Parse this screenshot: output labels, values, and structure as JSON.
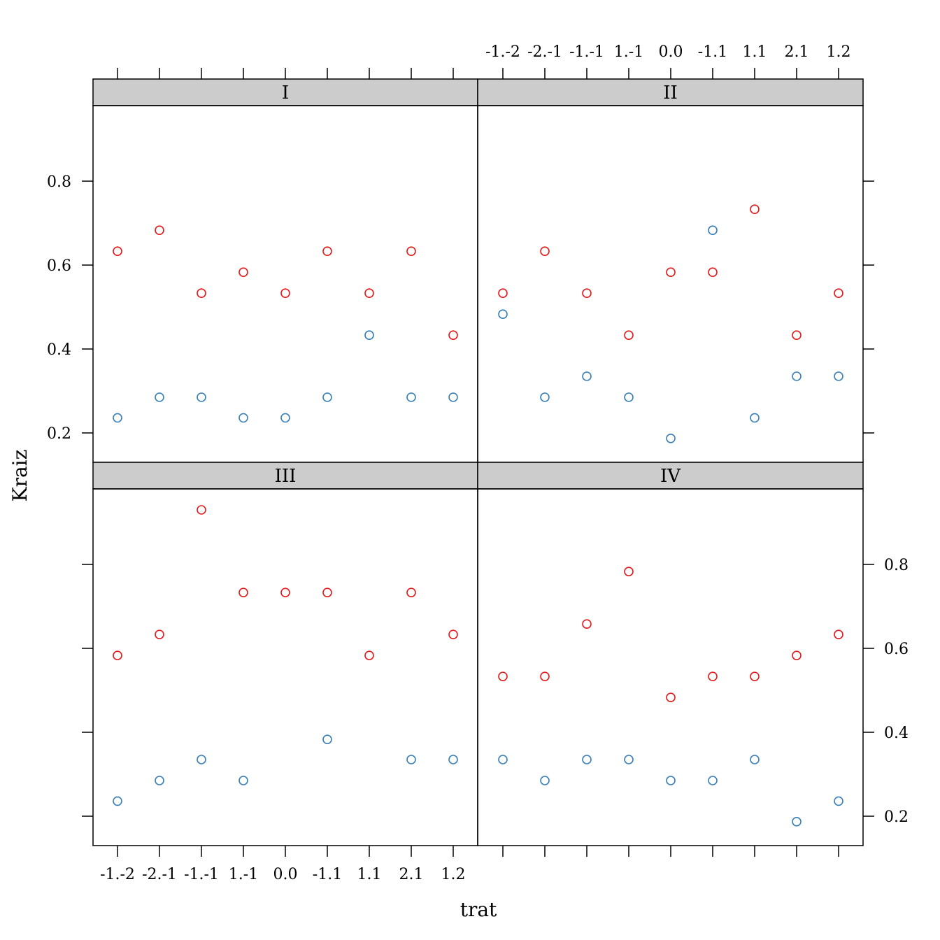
{
  "chart_data": {
    "type": "scatter",
    "layout": "lattice 2x2 panels",
    "xlabel": "trat",
    "ylabel": "Kraiz",
    "categories": [
      "-1.-2",
      "-2.-1",
      "-1.-1",
      "1.-1",
      "0.0",
      "-1.1",
      "1.1",
      "2.1",
      "1.2"
    ],
    "yticks": [
      0.2,
      0.4,
      0.6,
      0.8
    ],
    "ylim": [
      0.13,
      0.98
    ],
    "grid": false,
    "series_colors": {
      "upper": "#E41A1C",
      "lower": "#377EB8"
    },
    "panels": [
      {
        "label": "I",
        "series": [
          {
            "color": "#E41A1C",
            "values": [
              0.633,
              0.683,
              0.533,
              0.583,
              0.533,
              0.633,
              0.533,
              0.633,
              0.433
            ]
          },
          {
            "color": "#377EB8",
            "values": [
              0.236,
              0.285,
              0.285,
              0.236,
              0.236,
              0.285,
              0.433,
              0.285,
              0.285
            ]
          }
        ]
      },
      {
        "label": "II",
        "series": [
          {
            "color": "#E41A1C",
            "values": [
              0.533,
              0.633,
              0.533,
              0.433,
              0.583,
              0.583,
              0.733,
              0.433,
              0.533
            ]
          },
          {
            "color": "#377EB8",
            "values": [
              0.483,
              0.285,
              0.335,
              0.285,
              0.187,
              0.683,
              0.236,
              0.335,
              0.335
            ]
          }
        ]
      },
      {
        "label": "III",
        "series": [
          {
            "color": "#E41A1C",
            "values": [
              0.583,
              0.633,
              0.93,
              0.733,
              0.733,
              0.733,
              0.583,
              0.733,
              0.633
            ]
          },
          {
            "color": "#377EB8",
            "values": [
              0.236,
              0.285,
              0.335,
              0.285,
              null,
              0.383,
              null,
              0.335,
              0.335
            ]
          }
        ]
      },
      {
        "label": "IV",
        "series": [
          {
            "color": "#E41A1C",
            "values": [
              0.533,
              0.533,
              0.658,
              0.783,
              0.483,
              0.533,
              0.533,
              0.583,
              0.633
            ]
          },
          {
            "color": "#377EB8",
            "values": [
              0.335,
              0.285,
              0.335,
              0.335,
              0.285,
              0.285,
              0.335,
              0.187,
              0.236
            ]
          }
        ]
      }
    ]
  }
}
